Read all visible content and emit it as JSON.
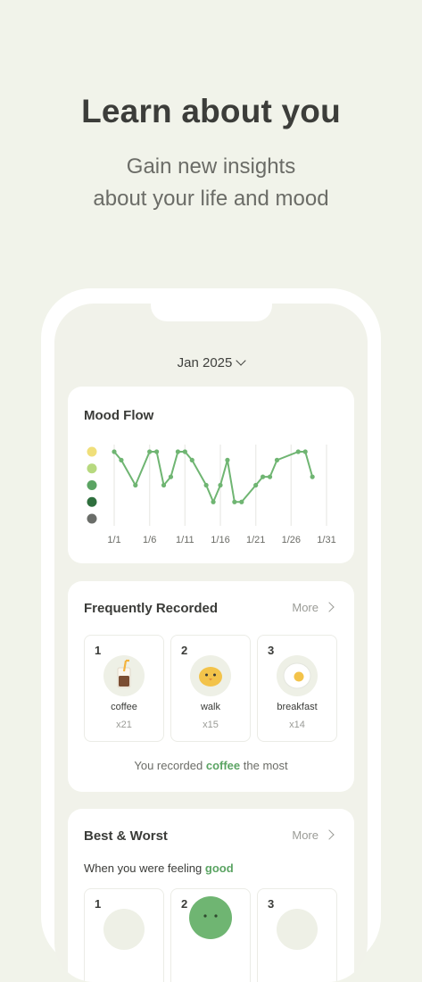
{
  "promo": {
    "headline": "Learn about you",
    "subline_1": "Gain new insights",
    "subline_2": "about your life and mood"
  },
  "app": {
    "month_label": "Jan 2025",
    "mood_flow": {
      "title": "Mood Flow"
    },
    "frequent": {
      "title": "Frequently Recorded",
      "more_label": "More",
      "items": [
        {
          "rank": "1",
          "name": "coffee",
          "count": "x21",
          "icon": "iced-coffee-icon"
        },
        {
          "rank": "2",
          "name": "walk",
          "count": "x15",
          "icon": "chick-icon"
        },
        {
          "rank": "3",
          "name": "breakfast",
          "count": "x14",
          "icon": "fried-egg-icon"
        }
      ],
      "summary_prefix": "You recorded",
      "summary_highlight": "coffee",
      "summary_suffix": "the most"
    },
    "best_worst": {
      "title": "Best & Worst",
      "more_label": "More",
      "feeling_prefix": "When you were feeling",
      "feeling_highlight": "good",
      "ranks": [
        "1",
        "2",
        "3"
      ]
    }
  },
  "chart_data": {
    "type": "line",
    "title": "Mood Flow",
    "x_tick_labels": [
      "1/1",
      "1/6",
      "1/11",
      "1/16",
      "1/21",
      "1/26",
      "1/31"
    ],
    "xlim": [
      1,
      31
    ],
    "y_levels": 5,
    "y_level_colors": [
      "#f0df7a",
      "#b7d97f",
      "#5ba463",
      "#2f6f3e",
      "#6a6d69"
    ],
    "line_color": "#6fb572",
    "grid": "vertical",
    "series": [
      {
        "x": [
          1,
          2,
          4,
          6,
          7,
          8,
          9,
          10,
          11,
          12,
          14,
          15,
          16,
          17,
          18,
          19,
          21,
          22,
          23,
          24,
          27,
          28,
          29
        ],
        "values": [
          5,
          4.5,
          3,
          5,
          5,
          3,
          3.5,
          5,
          5,
          4.5,
          3,
          2,
          3,
          4.5,
          2,
          2,
          3,
          3.5,
          3.5,
          4.5,
          5,
          5,
          3.5
        ]
      }
    ]
  },
  "colors": {
    "background": "#f1f3ea",
    "accent_green": "#5ba463"
  }
}
